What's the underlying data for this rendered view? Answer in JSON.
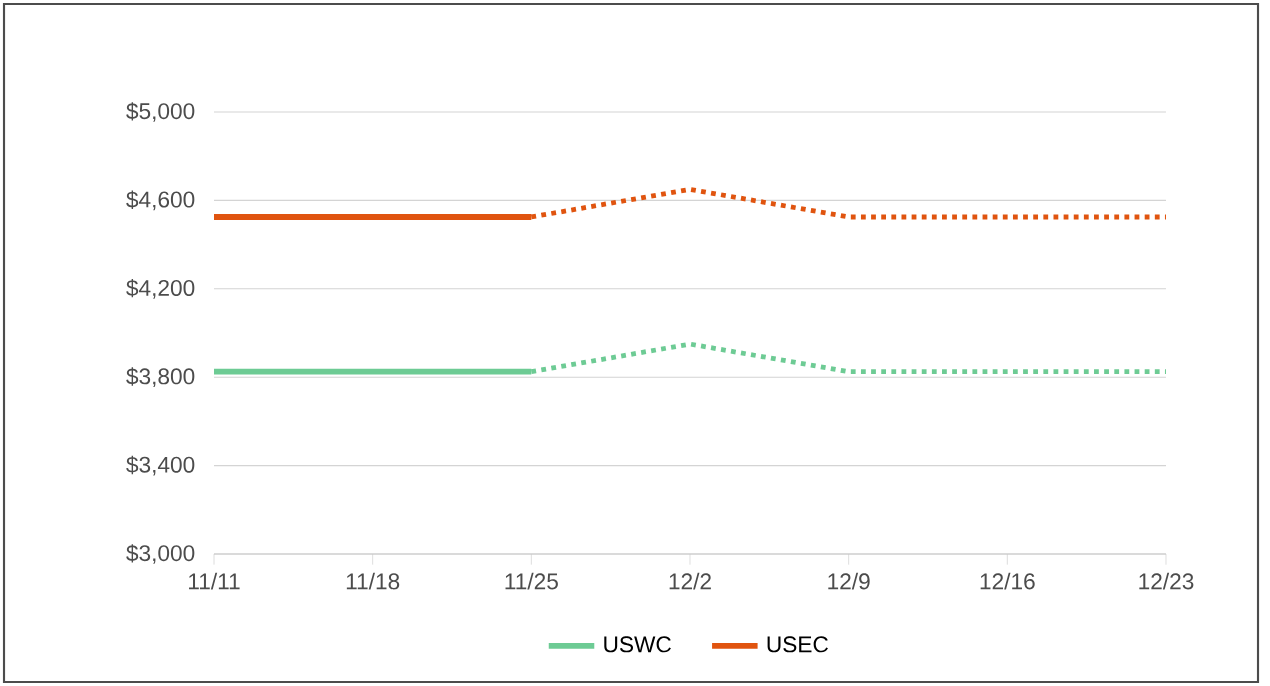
{
  "chart_data": {
    "type": "line",
    "categories": [
      "11/11",
      "11/18",
      "11/25",
      "12/2",
      "12/9",
      "12/16",
      "12/23"
    ],
    "series": [
      {
        "name": "USWC",
        "color": "#6dcb94",
        "line_style": "solid",
        "values": [
          3825,
          3825,
          3825,
          null,
          null,
          null,
          null
        ]
      },
      {
        "name": "USEC",
        "color": "#e0540f",
        "line_style": "solid",
        "values": [
          4525,
          4525,
          4525,
          null,
          null,
          null,
          null
        ]
      },
      {
        "color": "#6dcb94",
        "line_style": "dotted",
        "values": [
          null,
          null,
          3825,
          3950,
          3825,
          3825,
          3825
        ]
      },
      {
        "color": "#e0540f",
        "line_style": "dotted",
        "values": [
          null,
          null,
          4525,
          4650,
          4525,
          4525,
          4525
        ]
      }
    ],
    "ylim": [
      3000,
      5000
    ],
    "yticks": [
      {
        "value": 3000,
        "label": "$3,000"
      },
      {
        "value": 3400,
        "label": "$3,400"
      },
      {
        "value": 3800,
        "label": "$3,800"
      },
      {
        "value": 4200,
        "label": "$4,200"
      },
      {
        "value": 4600,
        "label": "$4,600"
      },
      {
        "value": 5000,
        "label": "$5,000"
      }
    ],
    "grid": "y",
    "legend": "bottom",
    "marker": "none"
  }
}
